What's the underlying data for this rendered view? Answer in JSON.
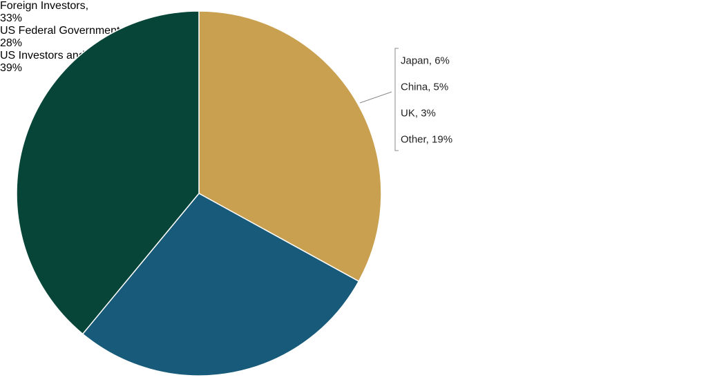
{
  "chart_data": {
    "type": "pie",
    "categories": [
      "Foreign Investors,",
      "US Federal Government,",
      "US Investors and the Fed,"
    ],
    "values": [
      33,
      28,
      39
    ],
    "value_labels": [
      "33%",
      "28%",
      "39%"
    ],
    "colors": [
      "#c9a050",
      "#175a7a",
      "#064537"
    ],
    "breakdown": {
      "categories": [
        "Japan,",
        "China,",
        "UK,",
        "Other,"
      ],
      "values": [
        6,
        5,
        3,
        19
      ],
      "value_labels": [
        "6%",
        "5%",
        "3%",
        "19%"
      ]
    }
  }
}
